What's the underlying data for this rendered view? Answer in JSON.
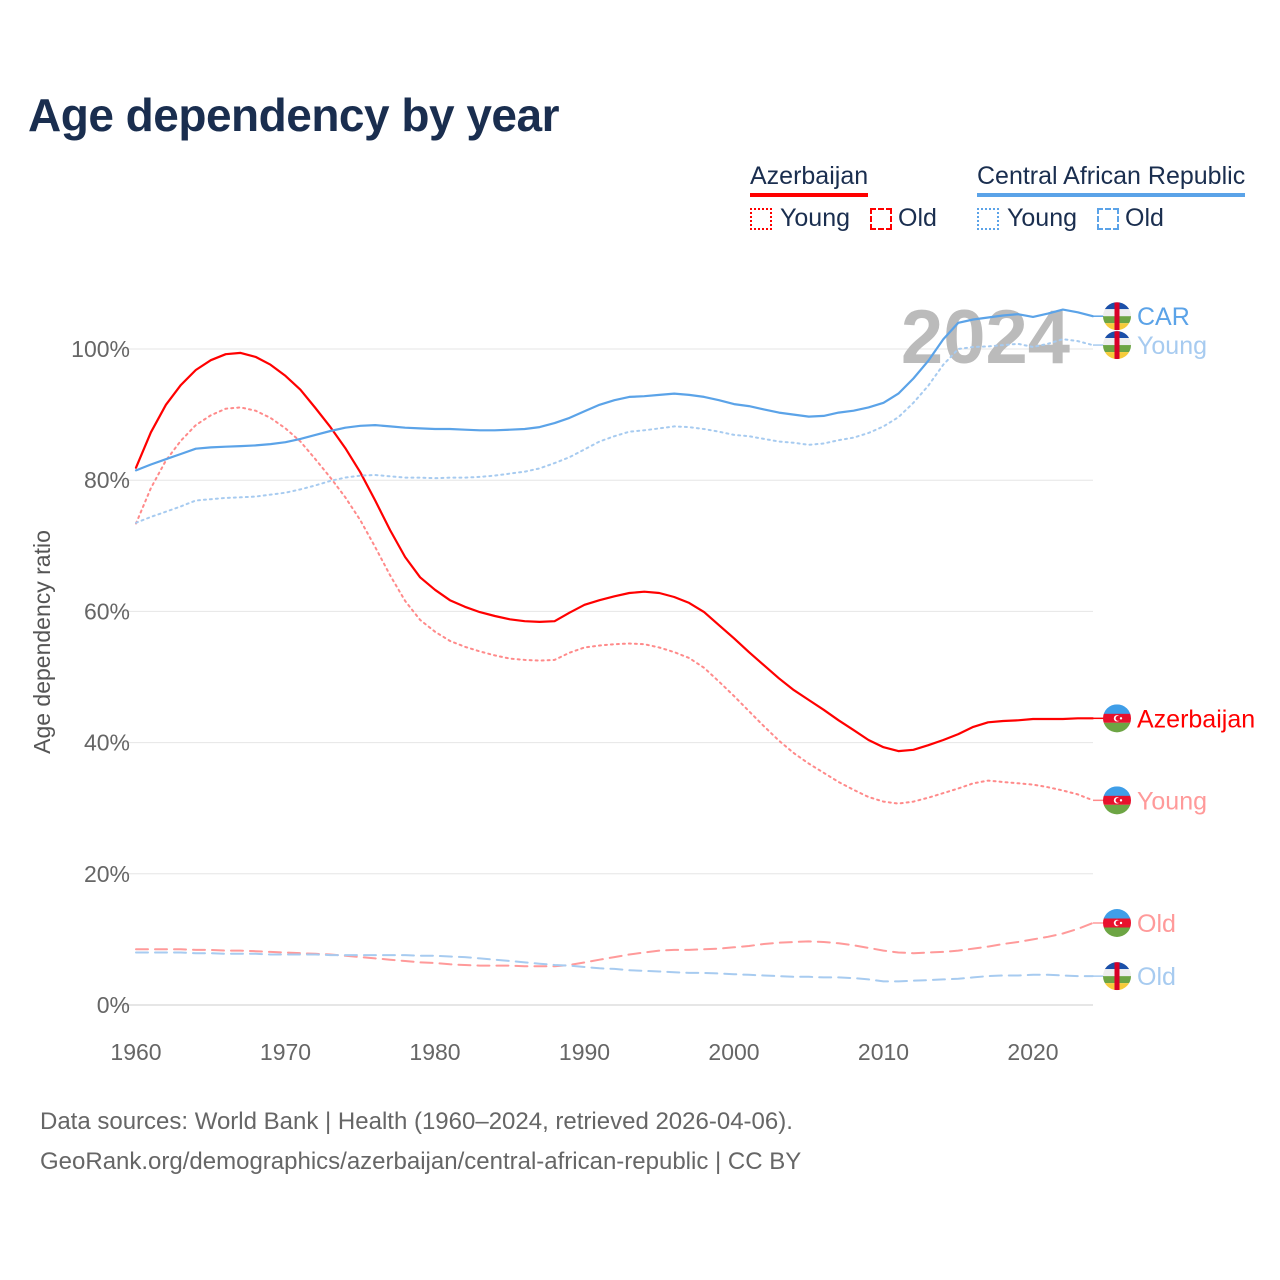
{
  "title": "Age dependency by year",
  "legend": {
    "groups": [
      {
        "name": "Azerbaijan",
        "color": "#ff0000",
        "light": "#ff9a9a",
        "items": [
          "Young",
          "Old"
        ]
      },
      {
        "name": "Central African Republic",
        "color": "#5ba3e8",
        "light": "#a7cbf0",
        "items": [
          "Young",
          "Old"
        ]
      }
    ]
  },
  "year_watermark": "2024",
  "footer": {
    "line1": "Data sources: World Bank | Health (1960–2024, retrieved 2026-04-06).",
    "line2": "GeoRank.org/demographics/azerbaijan/central-african-republic | CC BY"
  },
  "chart_data": {
    "type": "line",
    "title": "Age dependency by year",
    "xlabel": "",
    "ylabel": "Age dependency ratio",
    "xlim": [
      1960,
      2024
    ],
    "ylim": [
      0,
      110
    ],
    "x_ticks": [
      1960,
      1970,
      1980,
      1990,
      2000,
      2010,
      2020
    ],
    "y_ticks": [
      0,
      20,
      40,
      60,
      80,
      100
    ],
    "y_tick_labels": [
      "0%",
      "20%",
      "40%",
      "60%",
      "80%",
      "100%"
    ],
    "grid": true,
    "legend_position": "top-right",
    "x_start": 1960,
    "series": [
      {
        "name": "Azerbaijan",
        "end_label": "Azerbaijan",
        "country": "AZ",
        "style": "solid",
        "color": "#ff0000",
        "values": [
          81.9,
          87.3,
          91.5,
          94.5,
          96.8,
          98.3,
          99.2,
          99.4,
          98.8,
          97.6,
          95.9,
          93.8,
          91.0,
          88.1,
          84.9,
          81.2,
          76.9,
          72.4,
          68.3,
          65.2,
          63.3,
          61.7,
          60.7,
          59.9,
          59.3,
          58.8,
          58.5,
          58.4,
          58.5,
          59.8,
          61.0,
          61.7,
          62.3,
          62.8,
          63.0,
          62.8,
          62.2,
          61.3,
          59.9,
          57.9,
          55.9,
          53.8,
          51.8,
          49.8,
          48.0,
          46.5,
          45.0,
          43.4,
          41.9,
          40.4,
          39.3,
          38.7,
          38.9,
          39.6,
          40.4,
          41.3,
          42.4,
          43.1,
          43.3,
          43.4,
          43.6,
          43.6,
          43.6,
          43.7,
          43.7
        ]
      },
      {
        "name": "Azerbaijan Young",
        "end_label": "Young",
        "country": "AZ",
        "style": "dotted",
        "color": "#ff8a8a",
        "values": [
          73.4,
          78.8,
          83.0,
          86.0,
          88.4,
          89.9,
          90.9,
          91.1,
          90.6,
          89.5,
          87.9,
          85.9,
          83.2,
          80.4,
          77.4,
          73.9,
          69.8,
          65.5,
          61.6,
          58.7,
          56.9,
          55.5,
          54.6,
          53.9,
          53.3,
          52.8,
          52.6,
          52.5,
          52.6,
          53.7,
          54.5,
          54.8,
          55.0,
          55.1,
          55.0,
          54.5,
          53.8,
          52.9,
          51.4,
          49.3,
          47.1,
          44.8,
          42.5,
          40.3,
          38.4,
          36.8,
          35.4,
          34.0,
          32.8,
          31.7,
          31.0,
          30.7,
          31.0,
          31.6,
          32.3,
          33.0,
          33.8,
          34.2,
          34.0,
          33.8,
          33.6,
          33.2,
          32.7,
          32.1,
          31.2
        ]
      },
      {
        "name": "Azerbaijan Old",
        "end_label": "Old",
        "country": "AZ",
        "style": "dashed",
        "color": "#ff9a9a",
        "values": [
          8.5,
          8.5,
          8.5,
          8.5,
          8.4,
          8.4,
          8.3,
          8.3,
          8.2,
          8.1,
          8.0,
          7.9,
          7.8,
          7.7,
          7.5,
          7.3,
          7.1,
          6.9,
          6.7,
          6.5,
          6.4,
          6.2,
          6.1,
          6.0,
          6.0,
          6.0,
          5.9,
          5.9,
          5.9,
          6.1,
          6.5,
          6.9,
          7.3,
          7.7,
          8.0,
          8.3,
          8.4,
          8.4,
          8.5,
          8.6,
          8.8,
          9.0,
          9.3,
          9.5,
          9.6,
          9.7,
          9.6,
          9.4,
          9.1,
          8.7,
          8.3,
          8.0,
          7.9,
          8.0,
          8.1,
          8.3,
          8.6,
          8.9,
          9.3,
          9.6,
          10.0,
          10.4,
          10.9,
          11.6,
          12.5
        ]
      },
      {
        "name": "Central African Republic",
        "end_label": "CAR",
        "country": "CF",
        "style": "solid",
        "color": "#5ba3e8",
        "values": [
          81.5,
          82.4,
          83.2,
          84.0,
          84.8,
          85.0,
          85.1,
          85.2,
          85.3,
          85.5,
          85.8,
          86.3,
          86.9,
          87.5,
          88.0,
          88.3,
          88.4,
          88.2,
          88.0,
          87.9,
          87.8,
          87.8,
          87.7,
          87.6,
          87.6,
          87.7,
          87.8,
          88.1,
          88.7,
          89.5,
          90.5,
          91.5,
          92.2,
          92.7,
          92.8,
          93.0,
          93.2,
          93.0,
          92.7,
          92.2,
          91.6,
          91.3,
          90.8,
          90.3,
          90.0,
          89.7,
          89.8,
          90.3,
          90.6,
          91.1,
          91.8,
          93.2,
          95.5,
          98.2,
          101.5,
          104.0,
          104.5,
          104.8,
          105.1,
          105.3,
          104.9,
          105.4,
          106.0,
          105.6,
          105.0
        ]
      },
      {
        "name": "Central African Republic Young",
        "end_label": "Young",
        "country": "CF",
        "style": "dotted",
        "color": "#a7cbf0",
        "values": [
          73.5,
          74.4,
          75.2,
          76.0,
          76.9,
          77.1,
          77.3,
          77.4,
          77.5,
          77.8,
          78.1,
          78.6,
          79.2,
          79.9,
          80.4,
          80.7,
          80.8,
          80.6,
          80.4,
          80.4,
          80.3,
          80.4,
          80.4,
          80.5,
          80.7,
          81.0,
          81.3,
          81.8,
          82.6,
          83.5,
          84.7,
          85.9,
          86.7,
          87.4,
          87.6,
          87.9,
          88.2,
          88.1,
          87.8,
          87.4,
          86.9,
          86.7,
          86.3,
          85.9,
          85.7,
          85.4,
          85.6,
          86.1,
          86.5,
          87.2,
          88.2,
          89.6,
          91.8,
          94.4,
          97.6,
          100.0,
          100.3,
          100.4,
          100.6,
          100.8,
          100.3,
          100.8,
          101.5,
          101.2,
          100.6
        ]
      },
      {
        "name": "Central African Republic Old",
        "end_label": "Old",
        "country": "CF",
        "style": "dashed",
        "color": "#a7cbf0",
        "values": [
          8.0,
          8.0,
          8.0,
          8.0,
          7.9,
          7.9,
          7.8,
          7.8,
          7.8,
          7.7,
          7.7,
          7.7,
          7.7,
          7.6,
          7.6,
          7.6,
          7.6,
          7.6,
          7.6,
          7.5,
          7.5,
          7.4,
          7.3,
          7.1,
          6.9,
          6.7,
          6.5,
          6.3,
          6.1,
          6.0,
          5.8,
          5.6,
          5.5,
          5.3,
          5.2,
          5.1,
          5.0,
          4.9,
          4.9,
          4.8,
          4.7,
          4.6,
          4.5,
          4.4,
          4.3,
          4.3,
          4.2,
          4.2,
          4.1,
          3.9,
          3.6,
          3.6,
          3.7,
          3.8,
          3.9,
          4.0,
          4.2,
          4.4,
          4.5,
          4.5,
          4.6,
          4.6,
          4.5,
          4.4,
          4.4
        ]
      }
    ]
  }
}
